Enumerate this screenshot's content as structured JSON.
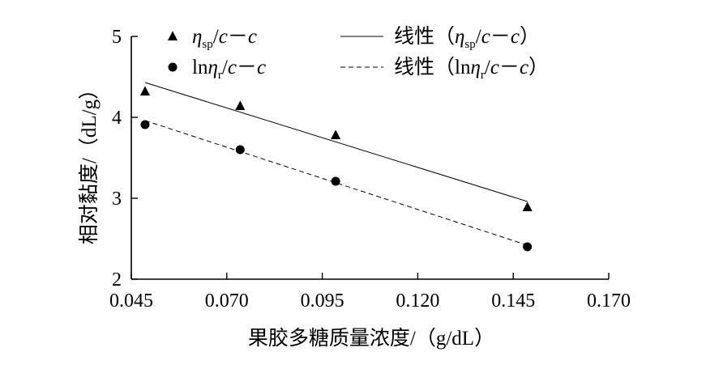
{
  "chart_data": {
    "type": "scatter",
    "xlabel": "果胶多糖质量浓度/（g/dL）",
    "ylabel": "相对黏度/（dL/g）",
    "xlim": [
      0.045,
      0.17
    ],
    "ylim": [
      2,
      5
    ],
    "x_ticks": [
      0.045,
      0.07,
      0.095,
      0.12,
      0.145,
      0.17
    ],
    "x_tick_labels": [
      "0.045",
      "0.070",
      "0.095",
      "0.120",
      "0.145",
      "0.170"
    ],
    "y_ticks": [
      2,
      3,
      4,
      5
    ],
    "y_tick_labels": [
      "2",
      "3",
      "4",
      "5"
    ],
    "grid": false,
    "legend_position": "top",
    "series": [
      {
        "name": "ηsp/c－c",
        "name_parts": {
          "symbol": "η",
          "sub": "sp",
          "rest": "/c－c"
        },
        "marker": "triangle",
        "x": [
          0.0486,
          0.0735,
          0.0985,
          0.1487
        ],
        "y": [
          4.32,
          4.14,
          3.78,
          2.89
        ]
      },
      {
        "name": "lnηr/c－c",
        "name_parts": {
          "prefix": "ln",
          "symbol": "η",
          "sub": "r",
          "rest": "/c－c"
        },
        "marker": "circle",
        "x": [
          0.0486,
          0.0735,
          0.0985,
          0.1487
        ],
        "y": [
          3.91,
          3.6,
          3.21,
          2.4
        ]
      },
      {
        "name": "线性（ηsp/c－c）",
        "name_parts": {
          "prefix": "线性（",
          "symbol": "η",
          "sub": "sp",
          "rest": "/c－c）"
        },
        "style": "solid",
        "x": [
          0.0486,
          0.1487
        ],
        "y": [
          4.43,
          2.96
        ]
      },
      {
        "name": "线性（lnηr/c－c）",
        "name_parts": {
          "prefix": "线性（ln",
          "symbol": "η",
          "sub": "r",
          "rest": "/c－c）"
        },
        "style": "dashed",
        "x": [
          0.0486,
          0.1487
        ],
        "y": [
          3.96,
          2.42
        ]
      }
    ]
  }
}
